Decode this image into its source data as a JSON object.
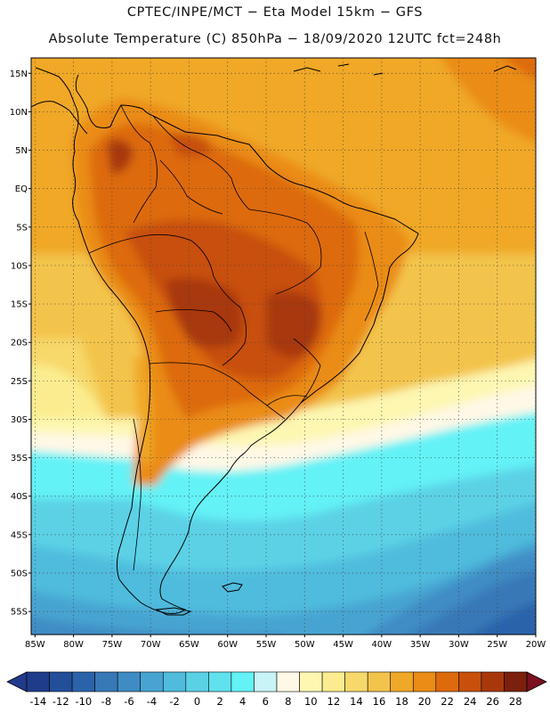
{
  "header": {
    "line1": "CPTEC/INPE/MCT −  Eta Model 15km − GFS",
    "line2": "Absolute Temperature (C) 850hPa − 18/09/2020 12UTC fct=248h"
  },
  "map": {
    "lat_labels": [
      "15N",
      "10N",
      "5N",
      "EQ",
      "5S",
      "10S",
      "15S",
      "20S",
      "25S",
      "30S",
      "35S",
      "40S",
      "45S",
      "50S",
      "55S"
    ],
    "lat_values": [
      15,
      10,
      5,
      0,
      -5,
      -10,
      -15,
      -20,
      -25,
      -30,
      -35,
      -40,
      -45,
      -50,
      -55
    ],
    "lon_labels": [
      "85W",
      "80W",
      "75W",
      "70W",
      "65W",
      "60W",
      "55W",
      "50W",
      "45W",
      "40W",
      "35W",
      "30W",
      "25W",
      "20W"
    ],
    "lon_values": [
      -85,
      -80,
      -75,
      -70,
      -65,
      -60,
      -55,
      -50,
      -45,
      -40,
      -35,
      -30,
      -25,
      -20
    ],
    "extent": {
      "lon_min": -85.5,
      "lon_max": -20,
      "lat_min": -58,
      "lat_max": 17
    },
    "variable": "Absolute Temperature (C) 850hPa"
  },
  "colorbar": {
    "labels": [
      "-14",
      "-12",
      "-10",
      "-8",
      "-6",
      "-4",
      "-2",
      "0",
      "2",
      "4",
      "6",
      "8",
      "10",
      "12",
      "14",
      "16",
      "18",
      "20",
      "22",
      "24",
      "26",
      "28"
    ],
    "colors": [
      "#1f3c8a",
      "#234e9a",
      "#2b63aa",
      "#3778b7",
      "#3f8cc4",
      "#47a4d2",
      "#50bcdd",
      "#5bd1e6",
      "#60e1ee",
      "#63f2f6",
      "#c8f4f8",
      "#fff8e6",
      "#fdf7b2",
      "#fbed8f",
      "#f7d86b",
      "#f3c44b",
      "#f0a828",
      "#ea8c16",
      "#dd6a0c",
      "#c8500c",
      "#a8380c",
      "#7c200e"
    ],
    "under_color": "#233a8c",
    "over_color": "#7a1020"
  }
}
